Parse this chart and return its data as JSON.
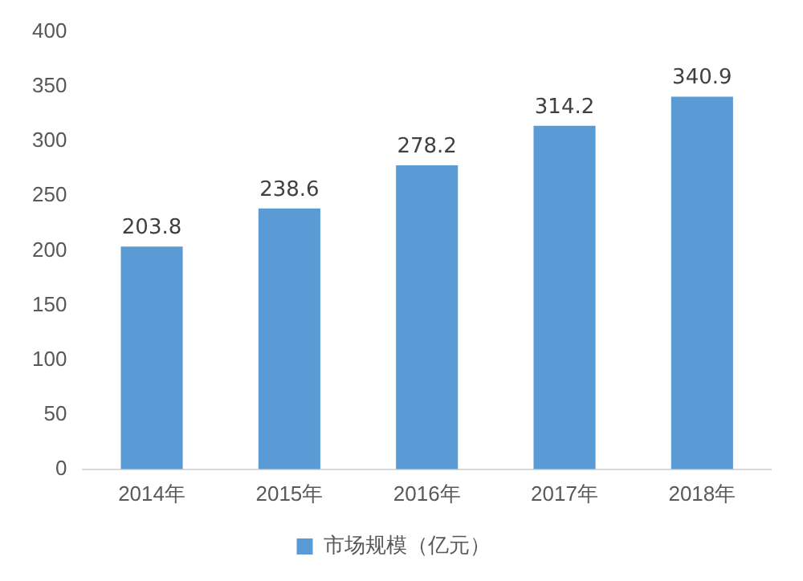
{
  "chart_data": {
    "type": "bar",
    "categories": [
      "2014年",
      "2015年",
      "2016年",
      "2017年",
      "2018年"
    ],
    "series": [
      {
        "name": "市场规模（亿元）",
        "color": "#5b9bd5",
        "values": [
          203.8,
          238.6,
          278.2,
          314.2,
          340.9
        ]
      }
    ],
    "ylim": [
      0,
      400
    ],
    "yticks": [
      0,
      50,
      100,
      150,
      200,
      250,
      300,
      350,
      400
    ],
    "grid": false,
    "legend": "bottom",
    "data_labels": true
  }
}
